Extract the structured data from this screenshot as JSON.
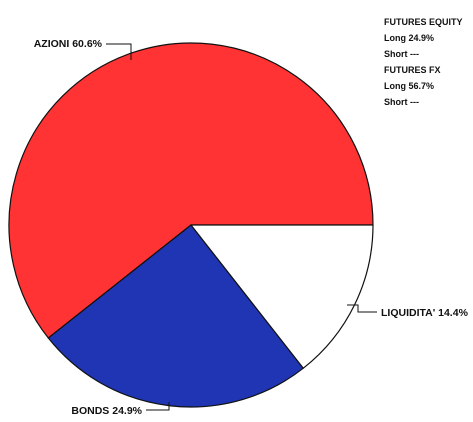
{
  "chart_data": {
    "type": "pie",
    "title": "",
    "slices": [
      {
        "label": "AZIONI 60.6%",
        "value": 60.6,
        "color": "#ff3333"
      },
      {
        "label": "BONDS 24.9%",
        "value": 24.9,
        "color": "#1f35b3"
      },
      {
        "label": "LIQUIDITA' 14.4%",
        "value": 14.4,
        "color": "#ffffff"
      }
    ]
  },
  "side_panel": {
    "futures_equity_title": "FUTURES EQUITY",
    "futures_equity_long": "Long 24.9%",
    "futures_equity_short": "Short ---",
    "futures_fx_title": "FUTURES FX",
    "futures_fx_long": "Long 56.7%",
    "futures_fx_short": "Short ---"
  }
}
